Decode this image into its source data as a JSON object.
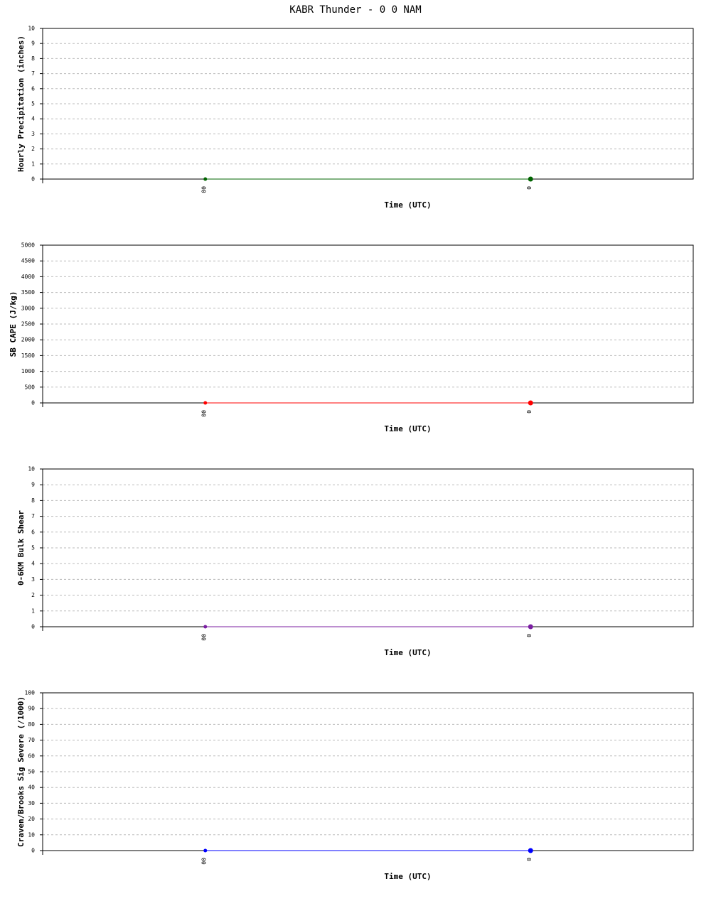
{
  "chart_data": [
    {
      "type": "line",
      "title": "KABR Thunder - 0 0 NAM",
      "ylabel": "Hourly Precipitation (inches)",
      "xlabel": "Time (UTC)",
      "categories": [
        "00",
        "0"
      ],
      "values": [
        0,
        0
      ],
      "color": "#006400",
      "ylim": [
        0,
        10
      ],
      "yticks": [
        0,
        1,
        2,
        3,
        4,
        5,
        6,
        7,
        8,
        9,
        10
      ],
      "grid": true
    },
    {
      "type": "line",
      "ylabel": "SB CAPE (J/kg)",
      "xlabel": "Time (UTC)",
      "categories": [
        "00",
        "0"
      ],
      "values": [
        0,
        0
      ],
      "color": "#ff0000",
      "ylim": [
        0,
        5000
      ],
      "yticks": [
        0,
        500,
        1000,
        1500,
        2000,
        2500,
        3000,
        3500,
        4000,
        4500,
        5000
      ],
      "grid": true
    },
    {
      "type": "line",
      "ylabel": "0-6KM Bulk Shear",
      "xlabel": "Time (UTC)",
      "categories": [
        "00",
        "0"
      ],
      "values": [
        0,
        0
      ],
      "color": "#7b1fa2",
      "ylim": [
        0,
        10
      ],
      "yticks": [
        0,
        1,
        2,
        3,
        4,
        5,
        6,
        7,
        8,
        9,
        10
      ],
      "grid": true
    },
    {
      "type": "line",
      "ylabel": "Craven/Brooks Sig Severe (/1000)",
      "xlabel": "Time (UTC)",
      "categories": [
        "00",
        "0"
      ],
      "values": [
        0,
        0
      ],
      "color": "#0000ff",
      "ylim": [
        0,
        100
      ],
      "yticks": [
        0,
        10,
        20,
        30,
        40,
        50,
        60,
        70,
        80,
        90,
        100
      ],
      "grid": true
    }
  ]
}
